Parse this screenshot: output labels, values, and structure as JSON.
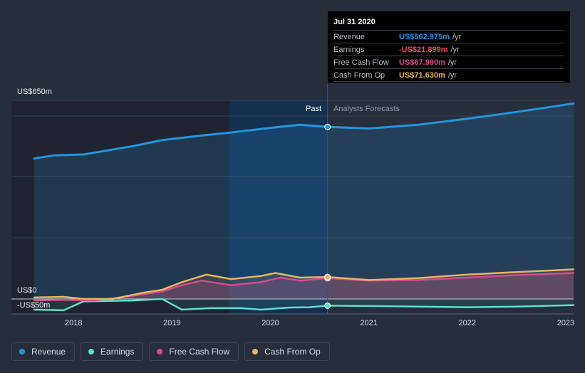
{
  "chart_data": {
    "type": "line",
    "title": "",
    "y_axis": {
      "max_label": "US$650m",
      "zero_label": "US$0",
      "min_label": "-US$50m",
      "ylim": [
        -50,
        650
      ]
    },
    "x_ticks": [
      "2018",
      "2019",
      "2020",
      "2021",
      "2022",
      "2023"
    ],
    "x_tick_values": [
      2018,
      2019,
      2020,
      2021,
      2022,
      2023
    ],
    "x_range": [
      2017.6,
      2023.08
    ],
    "past_label": "Past",
    "forecast_label": "Analysts Forecasts",
    "divider_x": 2020.58,
    "series": [
      {
        "name": "Revenue",
        "color": "#2394df",
        "x": [
          2017.6,
          2017.8,
          2018.1,
          2018.6,
          2018.9,
          2019.3,
          2019.6,
          2020.0,
          2020.3,
          2020.58,
          2021.0,
          2021.5,
          2022.0,
          2022.5,
          2023.08
        ],
        "y": [
          460,
          470,
          473,
          500,
          520,
          535,
          545,
          560,
          570,
          563,
          558,
          570,
          590,
          612,
          640
        ]
      },
      {
        "name": "Earnings",
        "color": "#5ce1cf",
        "x": [
          2017.6,
          2017.9,
          2018.1,
          2018.6,
          2018.9,
          2019.1,
          2019.4,
          2019.7,
          2019.9,
          2020.2,
          2020.4,
          2020.58,
          2021.0,
          2021.5,
          2022.0,
          2022.5,
          2023.08
        ],
        "y": [
          -35,
          -37,
          -8,
          -5,
          0,
          -35,
          -30,
          -30,
          -35,
          -28,
          -27,
          -22,
          -23,
          -25,
          -27,
          -25,
          -20
        ]
      },
      {
        "name": "Free Cash Flow",
        "color": "#d44a8f",
        "x": [
          2017.6,
          2017.9,
          2018.2,
          2018.6,
          2018.9,
          2019.1,
          2019.3,
          2019.6,
          2019.9,
          2020.1,
          2020.3,
          2020.58,
          2021.0,
          2021.5,
          2022.0,
          2022.5,
          2023.08
        ],
        "y": [
          -5,
          -3,
          -5,
          10,
          25,
          45,
          60,
          45,
          55,
          70,
          60,
          68,
          60,
          62,
          70,
          78,
          85
        ]
      },
      {
        "name": "Cash From Op",
        "color": "#e8b461",
        "x": [
          2017.6,
          2017.9,
          2018.1,
          2018.4,
          2018.7,
          2018.9,
          2019.1,
          2019.35,
          2019.6,
          2019.9,
          2020.05,
          2020.3,
          2020.58,
          2021.0,
          2021.5,
          2022.0,
          2022.5,
          2023.08
        ],
        "y": [
          5,
          7,
          0,
          0,
          20,
          30,
          55,
          80,
          65,
          75,
          85,
          70,
          72,
          62,
          68,
          80,
          88,
          97
        ]
      }
    ]
  },
  "tooltip": {
    "date": "Jul 31 2020",
    "rows": [
      {
        "label": "Revenue",
        "value": "US$562.975m",
        "unit": "/yr",
        "color": "#2394df"
      },
      {
        "label": "Earnings",
        "value": "-US$21.899m",
        "unit": "/yr",
        "color": "#e84f4f"
      },
      {
        "label": "Free Cash Flow",
        "value": "US$67.990m",
        "unit": "/yr",
        "color": "#d44a8f"
      },
      {
        "label": "Cash From Op",
        "value": "US$71.630m",
        "unit": "/yr",
        "color": "#e8b461"
      }
    ]
  },
  "legend": [
    {
      "label": "Revenue",
      "color": "#2394df"
    },
    {
      "label": "Earnings",
      "color": "#5ce1cf"
    },
    {
      "label": "Free Cash Flow",
      "color": "#d44a8f"
    },
    {
      "label": "Cash From Op",
      "color": "#e8b461"
    }
  ]
}
